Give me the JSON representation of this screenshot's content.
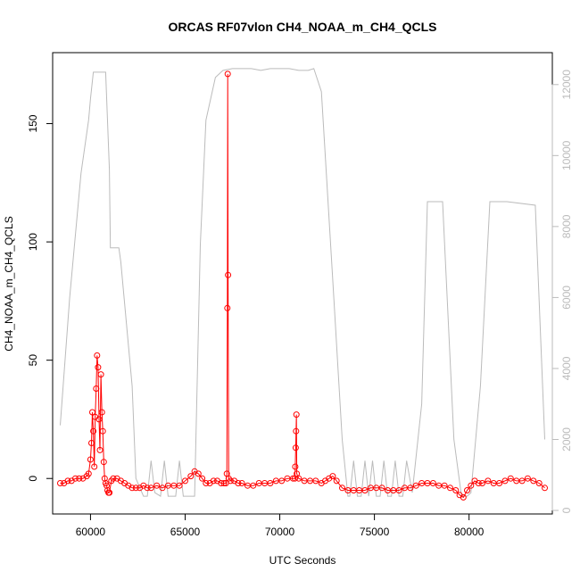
{
  "chart_data": {
    "type": "line",
    "title": "ORCAS RF07vlon CH4_NOAA_m_CH4_QCLS",
    "xlabel": "UTC Seconds",
    "ylabel": "CH4_NOAA_m_CH4_QCLS",
    "xlim": [
      58000,
      84400
    ],
    "ylim": [
      -15,
      180
    ],
    "y2lim": [
      -100,
      12900
    ],
    "x_ticks": [
      60000,
      65000,
      70000,
      75000,
      80000
    ],
    "y_ticks": [
      0,
      50,
      100,
      150
    ],
    "y2_ticks": [
      0,
      2000,
      4000,
      6000,
      8000,
      10000,
      12000
    ],
    "colors": {
      "primary": "#ff0000",
      "secondary": "#bbbbbb",
      "axis": "#000000"
    },
    "series": [
      {
        "axis": "left",
        "style": "line+points",
        "color": "#ff0000",
        "x": [
          58400,
          58600,
          58800,
          59000,
          59200,
          59400,
          59600,
          59800,
          59900,
          60000,
          60050,
          60100,
          60150,
          60200,
          60250,
          60300,
          60350,
          60400,
          60450,
          60500,
          60550,
          60600,
          60650,
          60700,
          60750,
          60800,
          60850,
          60900,
          60950,
          61000,
          61100,
          61200,
          61400,
          61600,
          61800,
          62000,
          62200,
          62400,
          62600,
          62800,
          63000,
          63200,
          63500,
          63800,
          64100,
          64400,
          64700,
          65000,
          65300,
          65500,
          65700,
          65900,
          66100,
          66300,
          66500,
          66700,
          66900,
          67050,
          67150,
          67200,
          67230,
          67250,
          67270,
          67300,
          67400,
          67600,
          67800,
          68000,
          68300,
          68600,
          68900,
          69200,
          69500,
          69800,
          70100,
          70400,
          70700,
          70800,
          70820,
          70840,
          70860,
          70880,
          70900,
          71000,
          71300,
          71600,
          71900,
          72200,
          72400,
          72600,
          72800,
          73000,
          73300,
          73600,
          73900,
          74200,
          74500,
          74800,
          75100,
          75400,
          75700,
          76000,
          76300,
          76600,
          76900,
          77200,
          77500,
          77800,
          78100,
          78400,
          78700,
          79000,
          79300,
          79500,
          79700,
          79900,
          80100,
          80300,
          80500,
          80700,
          81000,
          81300,
          81600,
          81900,
          82200,
          82500,
          82800,
          83100,
          83400,
          83700,
          84000
        ],
        "values": [
          -2,
          -2,
          -1,
          -1,
          0,
          0,
          0,
          1,
          2,
          8,
          15,
          28,
          20,
          5,
          26,
          38,
          52,
          47,
          25,
          12,
          44,
          28,
          20,
          7,
          0,
          -2,
          -3,
          -5,
          -6,
          -6,
          -1,
          0,
          0,
          -1,
          -2,
          -3,
          -4,
          -4,
          -4,
          -3,
          -4,
          -4,
          -3,
          -4,
          -3,
          -3,
          -3,
          -1,
          1,
          3,
          2,
          0,
          -2,
          -2,
          -1,
          -1,
          -2,
          -2,
          -2,
          2,
          72,
          171,
          86,
          0,
          -1,
          -1,
          -2,
          -2,
          -3,
          -3,
          -2,
          -2,
          -2,
          -1,
          -1,
          0,
          0,
          0,
          5,
          13,
          20,
          27,
          2,
          0,
          -1,
          -1,
          -1,
          -2,
          -1,
          0,
          1,
          -1,
          -4,
          -5,
          -5,
          -5,
          -5,
          -4,
          -4,
          -4,
          -5,
          -5,
          -5,
          -4,
          -4,
          -3,
          -2,
          -2,
          -2,
          -3,
          -3,
          -4,
          -5,
          -7,
          -8,
          -5,
          -3,
          -1,
          -2,
          -2,
          -1,
          -2,
          -2,
          -1,
          0,
          -1,
          -1,
          0,
          -1,
          -2,
          -4
        ]
      },
      {
        "axis": "right",
        "style": "line",
        "color": "#bbbbbb",
        "x": [
          58400,
          58900,
          59500,
          59900,
          60000,
          60150,
          60800,
          61000,
          61050,
          61500,
          61600,
          62200,
          62400,
          62800,
          63000,
          63200,
          63400,
          63700,
          63900,
          64100,
          64500,
          64700,
          64900,
          65500,
          65800,
          66100,
          66600,
          67000,
          67500,
          68000,
          68500,
          69000,
          69500,
          70000,
          70500,
          71000,
          71500,
          71800,
          72200,
          72800,
          73300,
          73600,
          73700,
          73900,
          74100,
          74300,
          74500,
          74700,
          74900,
          75100,
          75300,
          75500,
          75700,
          75900,
          76100,
          76300,
          76500,
          76700,
          77000,
          77500,
          77800,
          78300,
          78600,
          79200,
          79600,
          79900,
          80100,
          80600,
          81100,
          82000,
          83500,
          84000
        ],
        "values": [
          2400,
          6000,
          9500,
          11000,
          11600,
          12350,
          12350,
          9600,
          7400,
          7400,
          7000,
          3500,
          900,
          400,
          400,
          1400,
          500,
          400,
          1400,
          400,
          400,
          1400,
          400,
          400,
          7500,
          11000,
          12200,
          12400,
          12450,
          12450,
          12450,
          12400,
          12450,
          12450,
          12450,
          12400,
          12400,
          12450,
          11800,
          6500,
          2000,
          400,
          400,
          1400,
          400,
          400,
          1400,
          400,
          1400,
          400,
          400,
          1400,
          400,
          400,
          1400,
          400,
          400,
          1400,
          500,
          3000,
          8700,
          8700,
          8700,
          2000,
          400,
          400,
          500,
          3500,
          8700,
          8700,
          8600,
          2000
        ]
      }
    ]
  }
}
